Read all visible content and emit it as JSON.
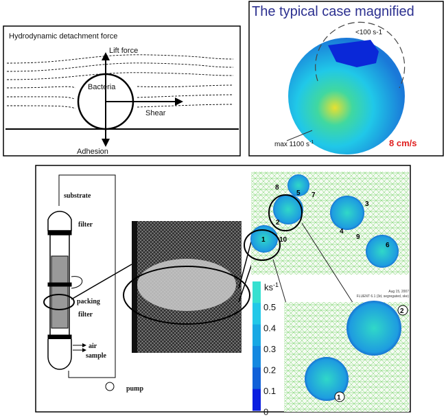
{
  "top_left_panel": {
    "title": "Hydrodynamic detachment force",
    "lift_label": "Lift force",
    "bacteria_label": "Bacteria",
    "shear_label": "Shear",
    "adhesion_label": "Adhesion"
  },
  "top_right_panel": {
    "title": "The typical case magnified",
    "low_shear_label": "<100 s-1",
    "max_label": "max 1100 s",
    "max_label_exp": "-1",
    "velocity_label": "8 cm/s",
    "colors": {
      "title": "#2b2f8f",
      "velocity": "#e02020"
    }
  },
  "reactor_diagram": {
    "substrate_label": "substrate",
    "filter_top_label": "filter",
    "packing_label": "packing",
    "filter_bottom_label": "filter",
    "air_label": "air",
    "sample_label": "sample",
    "pump_label": "pump"
  },
  "simulation_panel": {
    "sphere_numbers": [
      "8",
      "5",
      "7",
      "3",
      "2",
      "4",
      "9",
      "1",
      "10",
      "6"
    ],
    "zoom_numbers": [
      "2",
      "1"
    ],
    "fluent_date": "Aug 15, 2007",
    "fluent_info": "FLUENT 6.1 (3d, segregated, ske)",
    "legend_unit": "ks",
    "legend_unit_exp": "-1",
    "legend_ticks": [
      "0.5",
      "0.4",
      "0.3",
      "0.2",
      "0.1",
      "0"
    ],
    "legend_colors": [
      "#36e0d0",
      "#22c8e8",
      "#18a8e4",
      "#1488e0",
      "#1060d8",
      "#0a1ee0"
    ]
  }
}
